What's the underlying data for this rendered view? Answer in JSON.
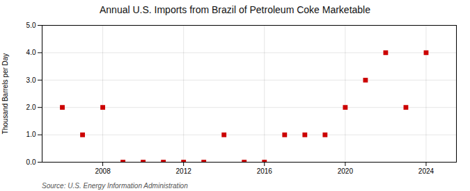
{
  "chart_data": {
    "type": "scatter",
    "title": "Annual U.S. Imports from Brazil of Petroleum Coke Marketable",
    "ylabel": "Thousand Barrels per Day",
    "annotations": [
      "Source: U.S. Energy Information Administration"
    ],
    "x": [
      2006,
      2007,
      2008,
      2009,
      2010,
      2011,
      2012,
      2013,
      2014,
      2015,
      2016,
      2017,
      2018,
      2019,
      2020,
      2021,
      2022,
      2023,
      2024
    ],
    "values": [
      2.0,
      1.0,
      2.0,
      0.0,
      0.0,
      0.0,
      0.0,
      0.0,
      1.0,
      0.0,
      0.0,
      1.0,
      1.0,
      1.0,
      2.0,
      3.0,
      4.0,
      2.0,
      4.0
    ],
    "color": "#cc0000",
    "marker": "square",
    "xlim": [
      2005.0,
      2025.5
    ],
    "xticks": [
      2008,
      2012,
      2016,
      2020,
      2024
    ],
    "ylim": [
      0,
      5.0
    ],
    "yticks": [
      {
        "value": 0.0,
        "label": "0.0"
      },
      {
        "value": 1.0,
        "label": "1.0"
      },
      {
        "value": 2.0,
        "label": "2.0"
      },
      {
        "value": 3.0,
        "label": "3.0"
      },
      {
        "value": 4.0,
        "label": "4.0"
      },
      {
        "value": 5.0,
        "label": "5.0"
      }
    ],
    "grid": true
  }
}
